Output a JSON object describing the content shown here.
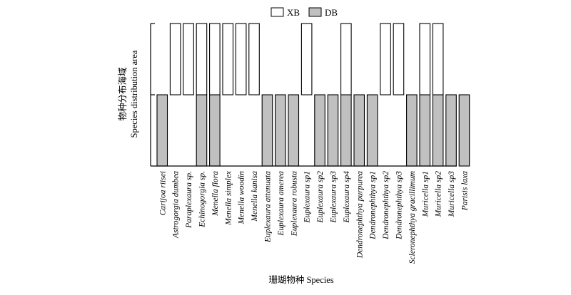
{
  "chart_data": {
    "type": "bar",
    "title": "",
    "xlabel": "珊瑚物种 Species",
    "ylabel": [
      "物种分布海域",
      "Species distribution area"
    ],
    "legend": [
      {
        "name": "XB",
        "color": "#ffffff"
      },
      {
        "name": "DB",
        "color": "#c0c0c0"
      }
    ],
    "legend_position": "top-right",
    "grid": false,
    "ylim": [
      0,
      2
    ],
    "categories": [
      "Carijoa riisei",
      "Astrogorgia dumbea",
      "Paraplexaura sp.",
      "Echinogorgia sp.",
      "Menella flora",
      "Menella simplex",
      "Menella woodin",
      "Menella kanisa",
      "Euplexaura attenuata",
      "Euplexaura amerea",
      "Euplexaura robusta",
      "Euplexaura sp1",
      "Euplexaura sp2",
      "Euplexaura sp3",
      "Euplexaura sp4",
      "Dendronephthya purpurea",
      "Dendronephthya sp1",
      "Dendronephthya sp2",
      "Dendronephthya sp3",
      "Scleronephthya gracillimum",
      "Muricella sp1",
      "Muricella sp2",
      "Muricella sp3",
      "Parisis laxa"
    ],
    "series": [
      {
        "name": "DB",
        "color": "#c0c0c0",
        "values": [
          1,
          0,
          0,
          1,
          1,
          0,
          0,
          0,
          1,
          1,
          1,
          0,
          1,
          1,
          1,
          1,
          1,
          0,
          0,
          1,
          1,
          1,
          1,
          1
        ]
      },
      {
        "name": "XB",
        "color": "#ffffff",
        "stack_base": [
          1,
          1,
          1,
          1,
          1,
          1,
          1,
          1,
          1,
          1,
          1,
          1,
          1,
          1,
          1,
          1,
          1,
          1,
          1,
          1,
          1,
          1,
          1,
          1
        ],
        "values": [
          0,
          1,
          1,
          1,
          1,
          1,
          1,
          1,
          0,
          0,
          0,
          1,
          0,
          0,
          1,
          0,
          0,
          1,
          1,
          0,
          1,
          1,
          0,
          0
        ]
      }
    ]
  }
}
